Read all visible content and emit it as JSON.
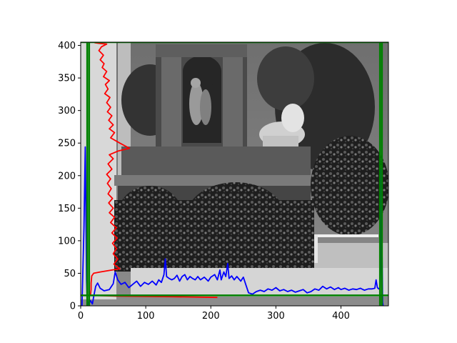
{
  "chart_data": {
    "type": "line",
    "title": "",
    "xlabel": "",
    "ylabel": "",
    "xlim": [
      0,
      473
    ],
    "ylim": [
      0,
      405
    ],
    "grid": false,
    "background": "grayscale photograph of a garden monument: an ornate stone arch with classical statues, a lion sculpture on a balustrade, dense shrubbery below",
    "xticks": [
      "0",
      "100",
      "200",
      "300",
      "400"
    ],
    "yticks": [
      "0",
      "50",
      "100",
      "150",
      "200",
      "250",
      "300",
      "350",
      "400"
    ],
    "colors": {
      "red": "#ff0000",
      "blue": "#0000ff",
      "green": "#008000"
    },
    "series": [
      {
        "color": "red",
        "description": "column intensity profile drawn along the left edge, plotted as x against y",
        "points": [
          [
            27,
            405
          ],
          [
            22,
            404
          ],
          [
            30,
            403
          ],
          [
            40,
            402
          ],
          [
            32,
            398
          ],
          [
            28,
            392
          ],
          [
            35,
            385
          ],
          [
            30,
            378
          ],
          [
            36,
            372
          ],
          [
            33,
            366
          ],
          [
            40,
            360
          ],
          [
            35,
            352
          ],
          [
            44,
            346
          ],
          [
            38,
            340
          ],
          [
            42,
            333
          ],
          [
            37,
            326
          ],
          [
            45,
            320
          ],
          [
            40,
            312
          ],
          [
            46,
            305
          ],
          [
            41,
            298
          ],
          [
            48,
            292
          ],
          [
            43,
            285
          ],
          [
            50,
            278
          ],
          [
            44,
            272
          ],
          [
            52,
            266
          ],
          [
            46,
            258
          ],
          [
            60,
            250
          ],
          [
            75,
            242
          ],
          [
            58,
            238
          ],
          [
            44,
            232
          ],
          [
            50,
            226
          ],
          [
            42,
            218
          ],
          [
            48,
            210
          ],
          [
            40,
            202
          ],
          [
            46,
            195
          ],
          [
            41,
            188
          ],
          [
            47,
            180
          ],
          [
            42,
            172
          ],
          [
            49,
            165
          ],
          [
            43,
            158
          ],
          [
            50,
            150
          ],
          [
            44,
            143
          ],
          [
            52,
            136
          ],
          [
            46,
            128
          ],
          [
            55,
            120
          ],
          [
            48,
            112
          ],
          [
            56,
            104
          ],
          [
            49,
            96
          ],
          [
            55,
            88
          ],
          [
            50,
            80
          ],
          [
            57,
            72
          ],
          [
            51,
            64
          ],
          [
            60,
            57
          ],
          [
            48,
            55
          ],
          [
            30,
            52
          ],
          [
            20,
            50
          ],
          [
            17,
            46
          ],
          [
            16,
            35
          ],
          [
            16,
            25
          ],
          [
            15,
            16
          ],
          [
            55,
            15
          ],
          [
            140,
            14
          ],
          [
            210,
            13
          ]
        ]
      },
      {
        "color": "blue",
        "description": "row intensity profile drawn along the bottom edge, plotted as x against y",
        "points": [
          [
            2,
            0
          ],
          [
            5,
            120
          ],
          [
            7,
            244
          ],
          [
            8,
            140
          ],
          [
            9,
            40
          ],
          [
            10,
            8
          ],
          [
            12,
            2
          ],
          [
            15,
            8
          ],
          [
            18,
            3
          ],
          [
            20,
            14
          ],
          [
            23,
            30
          ],
          [
            26,
            35
          ],
          [
            30,
            27
          ],
          [
            36,
            23
          ],
          [
            44,
            25
          ],
          [
            50,
            34
          ],
          [
            53,
            52
          ],
          [
            57,
            40
          ],
          [
            62,
            33
          ],
          [
            68,
            36
          ],
          [
            74,
            28
          ],
          [
            80,
            33
          ],
          [
            86,
            38
          ],
          [
            92,
            30
          ],
          [
            98,
            36
          ],
          [
            104,
            33
          ],
          [
            110,
            38
          ],
          [
            116,
            32
          ],
          [
            120,
            40
          ],
          [
            124,
            36
          ],
          [
            128,
            48
          ],
          [
            130,
            72
          ],
          [
            132,
            45
          ],
          [
            136,
            42
          ],
          [
            140,
            40
          ],
          [
            144,
            42
          ],
          [
            148,
            47
          ],
          [
            152,
            38
          ],
          [
            156,
            45
          ],
          [
            160,
            48
          ],
          [
            164,
            40
          ],
          [
            168,
            45
          ],
          [
            172,
            42
          ],
          [
            176,
            40
          ],
          [
            180,
            45
          ],
          [
            184,
            40
          ],
          [
            190,
            44
          ],
          [
            196,
            38
          ],
          [
            200,
            44
          ],
          [
            206,
            48
          ],
          [
            210,
            40
          ],
          [
            214,
            55
          ],
          [
            216,
            40
          ],
          [
            220,
            52
          ],
          [
            223,
            45
          ],
          [
            226,
            65
          ],
          [
            228,
            42
          ],
          [
            232,
            46
          ],
          [
            236,
            40
          ],
          [
            240,
            45
          ],
          [
            246,
            38
          ],
          [
            250,
            44
          ],
          [
            254,
            32
          ],
          [
            258,
            20
          ],
          [
            264,
            18
          ],
          [
            270,
            22
          ],
          [
            276,
            24
          ],
          [
            282,
            22
          ],
          [
            288,
            26
          ],
          [
            294,
            24
          ],
          [
            300,
            28
          ],
          [
            306,
            23
          ],
          [
            312,
            25
          ],
          [
            318,
            22
          ],
          [
            324,
            24
          ],
          [
            330,
            21
          ],
          [
            336,
            23
          ],
          [
            342,
            25
          ],
          [
            348,
            20
          ],
          [
            354,
            22
          ],
          [
            360,
            26
          ],
          [
            366,
            24
          ],
          [
            372,
            30
          ],
          [
            378,
            26
          ],
          [
            384,
            29
          ],
          [
            390,
            25
          ],
          [
            396,
            28
          ],
          [
            400,
            25
          ],
          [
            406,
            27
          ],
          [
            412,
            24
          ],
          [
            418,
            26
          ],
          [
            424,
            25
          ],
          [
            430,
            27
          ],
          [
            436,
            24
          ],
          [
            442,
            26
          ],
          [
            448,
            26
          ],
          [
            452,
            27
          ],
          [
            454,
            40
          ],
          [
            456,
            28
          ],
          [
            458,
            26
          ],
          [
            460,
            28
          ],
          [
            461,
            60
          ],
          [
            462,
            210
          ],
          [
            463,
            100
          ],
          [
            464,
            5
          ],
          [
            465,
            0
          ]
        ]
      },
      {
        "color": "green",
        "description": "frame boundary lines",
        "segments": [
          [
            [
              10,
              0
            ],
            [
              10,
              405
            ]
          ],
          [
            [
              13,
              0
            ],
            [
              13,
              405
            ]
          ],
          [
            [
              460,
              0
            ],
            [
              460,
              405
            ]
          ],
          [
            [
              463,
              0
            ],
            [
              463,
              405
            ]
          ],
          [
            [
              0,
              16
            ],
            [
              473,
              16
            ]
          ],
          [
            [
              0,
              405
            ],
            [
              473,
              405
            ]
          ]
        ]
      }
    ]
  }
}
